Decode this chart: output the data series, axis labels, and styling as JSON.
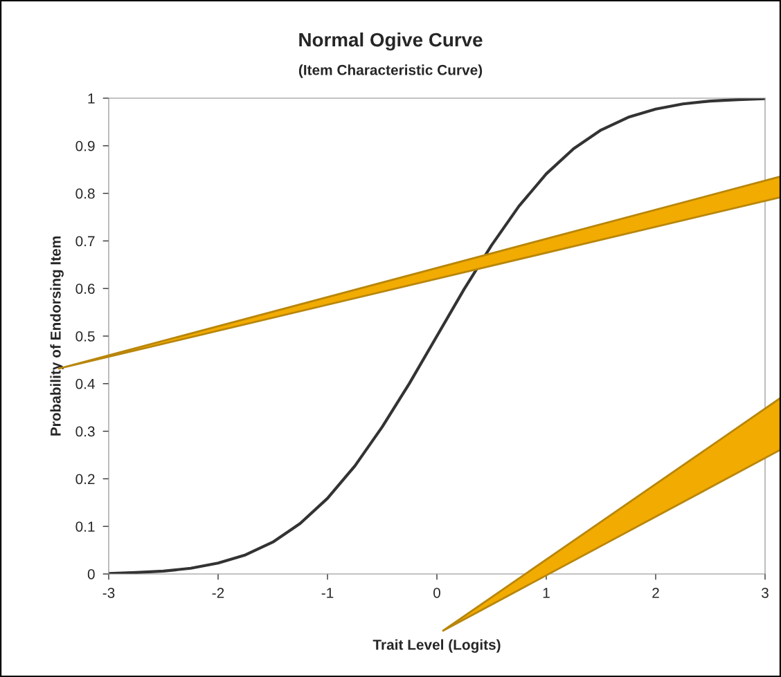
{
  "chart_data": {
    "type": "line",
    "title": "Normal Ogive Curve",
    "subtitle": "(Item Characteristic Curve)",
    "xlabel": "Trait Level (Logits)",
    "ylabel": "Probability of Endorsing Item",
    "x": [
      -3,
      -2.75,
      -2.5,
      -2.25,
      -2,
      -1.75,
      -1.5,
      -1.25,
      -1,
      -0.75,
      -0.5,
      -0.25,
      0,
      0.25,
      0.5,
      0.75,
      1,
      1.25,
      1.5,
      1.75,
      2,
      2.25,
      2.5,
      2.75,
      3
    ],
    "series": [
      {
        "color": "#333333",
        "values": [
          0.001,
          0.003,
          0.006,
          0.012,
          0.023,
          0.04,
          0.067,
          0.106,
          0.159,
          0.227,
          0.309,
          0.401,
          0.5,
          0.599,
          0.691,
          0.773,
          0.841,
          0.894,
          0.933,
          0.96,
          0.977,
          0.988,
          0.994,
          0.997,
          0.999
        ]
      }
    ],
    "xlim": [
      -3,
      3
    ],
    "ylim": [
      0,
      1
    ],
    "xticks": [
      -3,
      -2,
      -1,
      0,
      1,
      2,
      3
    ],
    "yticks": [
      0,
      0.1,
      0.2,
      0.3,
      0.4,
      0.5,
      0.6,
      0.7,
      0.8,
      0.9,
      1
    ],
    "grid": false,
    "legend": false,
    "marker": "none",
    "line_style": "solid"
  }
}
